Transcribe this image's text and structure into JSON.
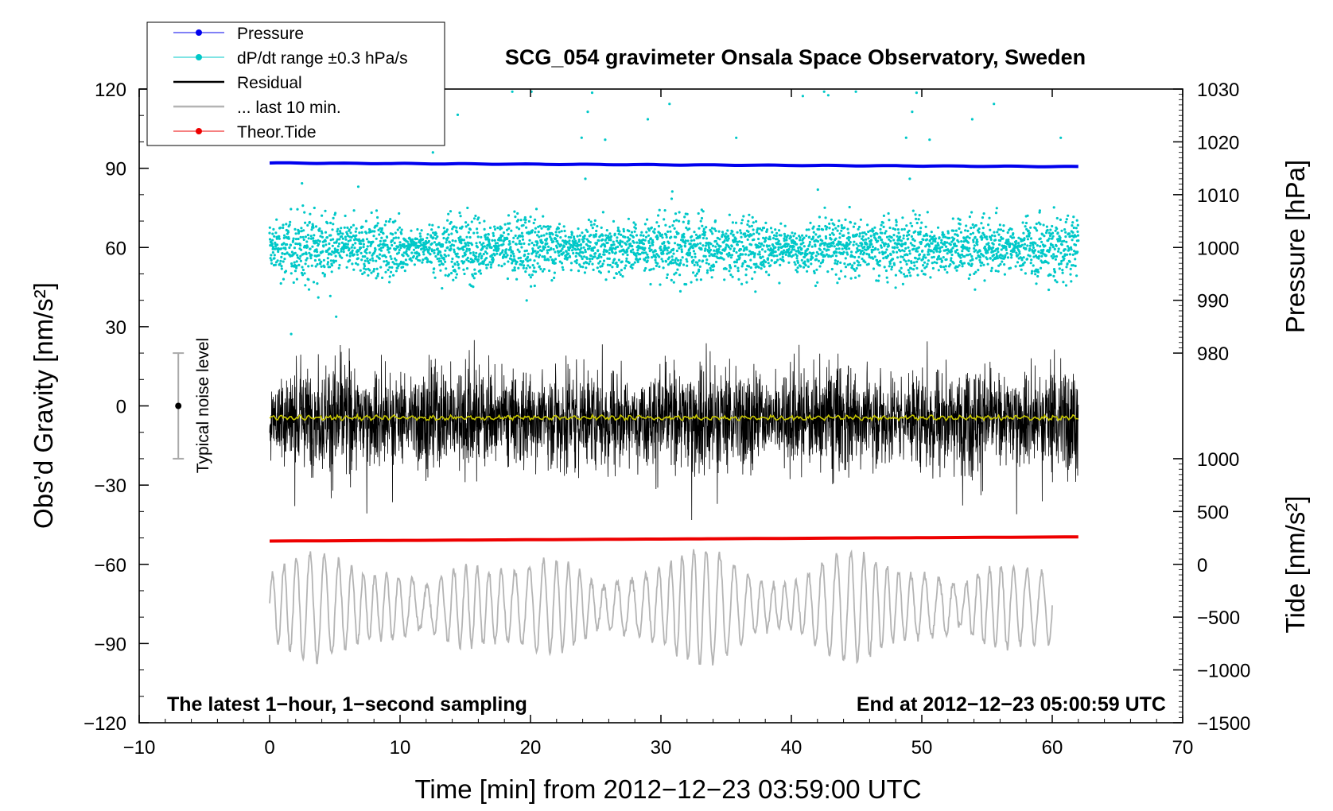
{
  "chart_data": {
    "type": "line",
    "title": "SCG_054 gravimeter Onsala Space Observatory, Sweden",
    "xlabel": "Time [min] from 2012−12−23 03:59:00 UTC",
    "ylabel_left": "Obs’d Gravity [nm/s²]",
    "ylabel_right_top": "Pressure [hPa]",
    "ylabel_right_bottom": "Tide [nm/s²]",
    "xlim": [
      -10,
      70
    ],
    "ylim_left": [
      -120,
      120
    ],
    "x_ticks": [
      "−10",
      "0",
      "10",
      "20",
      "30",
      "40",
      "50",
      "60",
      "70"
    ],
    "y_ticks_left": [
      "120",
      "90",
      "60",
      "30",
      "0",
      "−30",
      "−60",
      "−90",
      "−120"
    ],
    "y_ticks_pressure": [
      "1030",
      "1020",
      "1010",
      "1000",
      "990",
      "980"
    ],
    "y_ticks_tide": [
      "1000",
      "500",
      "0",
      "−500",
      "−1000",
      "−1500"
    ],
    "pressure_axis_map": {
      "pressure_range": [
        980,
        1030
      ],
      "left_range": [
        20,
        120
      ]
    },
    "tide_axis_map": {
      "tide_range": [
        -1500,
        1000
      ],
      "left_range": [
        -120,
        -20
      ]
    },
    "annotation_left": "The latest 1−hour, 1−second sampling",
    "annotation_right": "End at 2012−12−23 05:00:59 UTC",
    "noise_label": "Typical noise level",
    "noise_bar": {
      "center": 0,
      "low": -20,
      "high": 20,
      "x": -7
    },
    "legend": [
      {
        "label": "Pressure",
        "color": "#0000ee",
        "marker": true
      },
      {
        "label": "dP/dt range ±0.3 hPa/s",
        "color": "#00c8c8",
        "marker": true
      },
      {
        "label": "Residual",
        "color": "#000000",
        "marker": false
      },
      {
        "label": "... last 10 min.",
        "color": "#b4b4b4",
        "marker": false
      },
      {
        "label": "Theor.Tide",
        "color": "#ee0000",
        "marker": true
      }
    ],
    "series": [
      {
        "name": "Pressure",
        "axis": "pressure",
        "color": "#0000ee",
        "x": [
          0,
          62
        ],
        "values": [
          1016.0,
          1015.3
        ]
      },
      {
        "name": "Theor.Tide",
        "axis": "tide",
        "color": "#ee0000",
        "x": [
          0,
          62
        ],
        "values": [
          220,
          260
        ]
      },
      {
        "name": "dP/dt range ±0.3 hPa/s",
        "axis": "left",
        "color": "#00c8c8",
        "x_range": [
          0,
          62
        ],
        "center": 60,
        "spread": 7
      },
      {
        "name": "Residual",
        "axis": "left",
        "color": "#000000",
        "x_range": [
          0,
          62
        ],
        "center": 0,
        "spread": 13
      },
      {
        "name": "Residual smoothed",
        "axis": "left",
        "color": "#c8c800",
        "x_range": [
          0,
          62
        ],
        "center": -4.5
      },
      {
        "name": "... last 10 min.",
        "axis": "left",
        "color": "#b4b4b4",
        "x_range": [
          0,
          60
        ],
        "center": -76,
        "amplitude": 22
      }
    ]
  }
}
